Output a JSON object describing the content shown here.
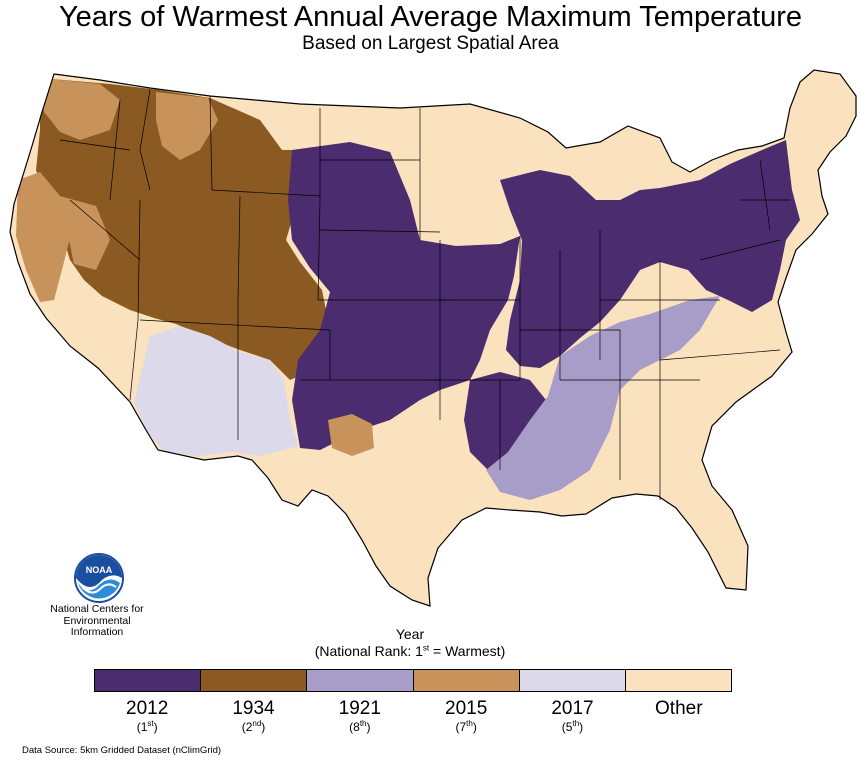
{
  "title": "Years of Warmest Annual Average Maximum Temperature",
  "subtitle": "Based on Largest Spatial Area",
  "colors": {
    "c2012": "#4b2c6e",
    "c1934": "#8a5a22",
    "c1921": "#a89cc8",
    "c2015": "#c8935a",
    "c2017": "#dcd9ea",
    "other": "#fbe2bf",
    "border": "#000000"
  },
  "agency": {
    "logo_name": "NOAA",
    "line1": "National Centers for",
    "line2": "Environmental",
    "line3": "Information"
  },
  "legend": {
    "heading_line1": "Year",
    "heading_rank_prefix": "(National Rank: 1",
    "heading_rank_sup": "st",
    "heading_rank_suffix": " = Warmest)",
    "items": [
      {
        "year": "2012",
        "rank_num": "1",
        "rank_sup": "st",
        "color_key": "c2012"
      },
      {
        "year": "1934",
        "rank_num": "2",
        "rank_sup": "nd",
        "color_key": "c1934"
      },
      {
        "year": "1921",
        "rank_num": "8",
        "rank_sup": "th",
        "color_key": "c1921"
      },
      {
        "year": "2015",
        "rank_num": "7",
        "rank_sup": "th",
        "color_key": "c2015"
      },
      {
        "year": "2017",
        "rank_num": "5",
        "rank_sup": "th",
        "color_key": "c2017"
      },
      {
        "year": "Other",
        "rank_num": "",
        "rank_sup": "",
        "color_key": "other"
      }
    ]
  },
  "source": "Data Source: 5km Gridded Dataset (nClimGrid)"
}
